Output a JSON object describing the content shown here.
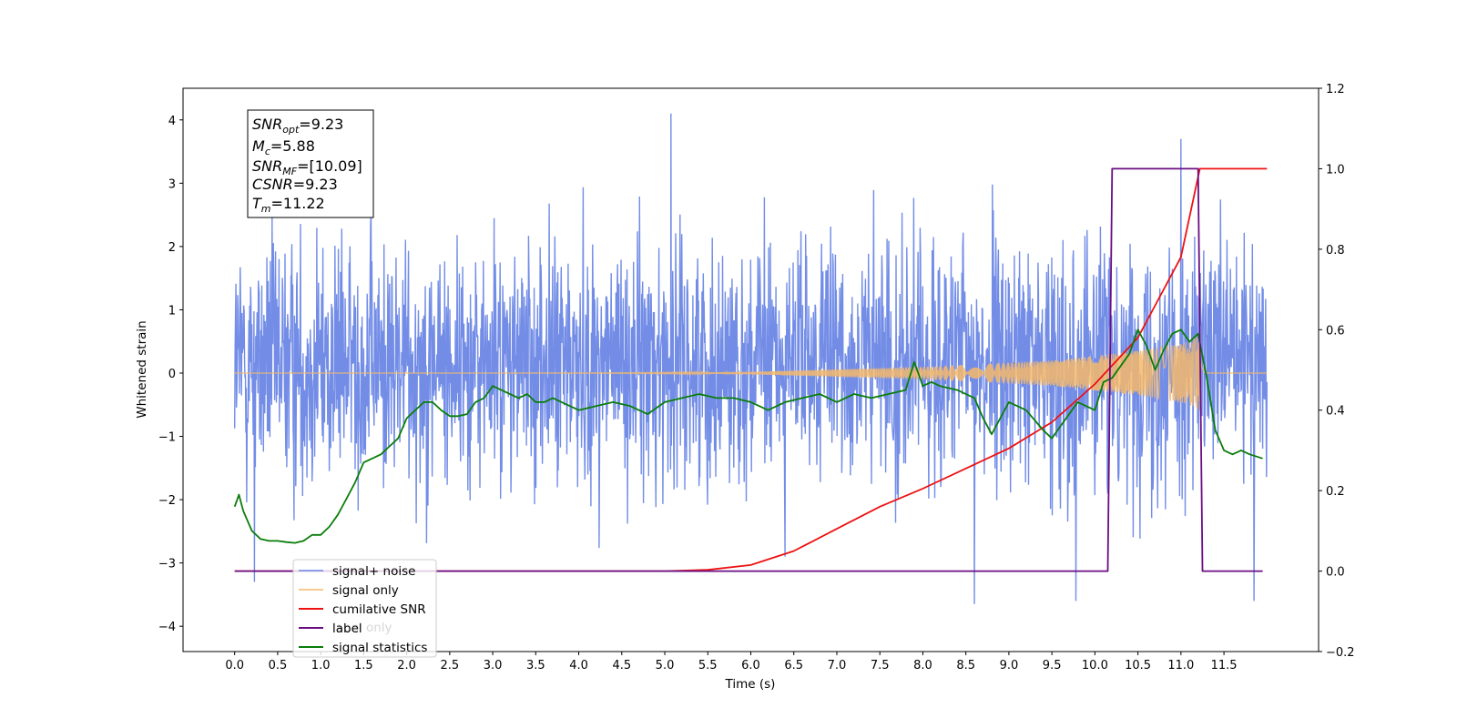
{
  "chart_data": {
    "type": "line",
    "title": "",
    "xlabel": "Time (s)",
    "ylabel": "Whitened strain",
    "xlim": [
      -0.6,
      12.6
    ],
    "ylim_left": [
      -4.4,
      4.5
    ],
    "ylim_right": [
      -0.2,
      1.2
    ],
    "x_ticks": [
      0.0,
      0.5,
      1.0,
      1.5,
      2.0,
      2.5,
      3.0,
      3.5,
      4.0,
      4.5,
      5.0,
      5.5,
      6.0,
      6.5,
      7.0,
      7.5,
      8.0,
      8.5,
      9.0,
      9.5,
      10.0,
      10.5,
      11.0,
      11.5
    ],
    "x_tick_labels": [
      "0.0",
      "0.5",
      "1.0",
      "1.5",
      "2.0",
      "2.5",
      "3.0",
      "3.5",
      "4.0",
      "4.5",
      "5.0",
      "5.5",
      "6.0",
      "6.5",
      "7.0",
      "7.5",
      "8.0",
      "8.5",
      "9.0",
      "9.5",
      "10.0",
      "10.5",
      "11.0",
      "11.5"
    ],
    "y_left_ticks": [
      -4,
      -3,
      -2,
      -1,
      0,
      1,
      2,
      3,
      4
    ],
    "y_left_tick_labels": [
      "−4",
      "−3",
      "−2",
      "−1",
      "0",
      "1",
      "2",
      "3",
      "4"
    ],
    "y_right_ticks": [
      -0.2,
      0.0,
      0.2,
      0.4,
      0.6,
      0.8,
      1.0,
      1.2
    ],
    "y_right_tick_labels": [
      "−0.2",
      "0.0",
      "0.2",
      "0.4",
      "0.6",
      "0.8",
      "1.0",
      "1.2"
    ],
    "grid": false,
    "legend_position": "bottom-left",
    "series": [
      {
        "name": "signal+ noise",
        "axis": "left",
        "color": "#6b87e6",
        "kind": "noise_band",
        "x_range": [
          0.0,
          12.0
        ],
        "typical_envelope": [
          -2.0,
          2.5
        ],
        "peak_values": [
          {
            "x": 5.07,
            "y": 4.1
          },
          {
            "x": 11.0,
            "y": 3.7
          },
          {
            "x": 8.6,
            "y": -3.65
          },
          {
            "x": 11.85,
            "y": -3.6
          },
          {
            "x": 9.78,
            "y": -3.6
          },
          {
            "x": 0.23,
            "y": -3.3
          }
        ]
      },
      {
        "name": "signal only",
        "axis": "left",
        "color": "#f5b86b",
        "kind": "chirp",
        "x_range": [
          0.0,
          12.0
        ],
        "merger_time": 11.22,
        "envelope_points": [
          {
            "x": 6.0,
            "y": 0.02
          },
          {
            "x": 8.0,
            "y": 0.1
          },
          {
            "x": 9.5,
            "y": 0.2
          },
          {
            "x": 10.5,
            "y": 0.35
          },
          {
            "x": 11.1,
            "y": 0.5
          },
          {
            "x": 11.22,
            "y": 0.6
          }
        ]
      },
      {
        "name": "cumilative SNR",
        "axis": "right",
        "color": "#ee1111",
        "x": [
          0.0,
          5.0,
          5.5,
          6.0,
          6.5,
          7.0,
          7.5,
          8.0,
          8.5,
          9.0,
          9.5,
          10.0,
          10.5,
          11.0,
          11.22,
          12.0
        ],
        "y": [
          0.0,
          0.0,
          0.003,
          0.015,
          0.05,
          0.105,
          0.16,
          0.205,
          0.255,
          0.305,
          0.37,
          0.465,
          0.58,
          0.78,
          1.0,
          1.0
        ]
      },
      {
        "name": "label",
        "axis": "right",
        "color": "#6a0d83",
        "x": [
          0.0,
          10.15,
          10.2,
          11.2,
          11.25,
          11.95
        ],
        "y": [
          0.0,
          0.0,
          1.0,
          1.0,
          0.0,
          0.0
        ]
      },
      {
        "name": "signal statistics",
        "axis": "right",
        "color": "#0a7d0a",
        "x": [
          0.0,
          0.05,
          0.1,
          0.2,
          0.3,
          0.4,
          0.5,
          0.6,
          0.7,
          0.8,
          0.9,
          1.0,
          1.1,
          1.2,
          1.3,
          1.4,
          1.5,
          1.6,
          1.7,
          1.8,
          1.9,
          2.0,
          2.1,
          2.2,
          2.3,
          2.4,
          2.5,
          2.6,
          2.7,
          2.8,
          2.9,
          3.0,
          3.1,
          3.2,
          3.3,
          3.4,
          3.5,
          3.6,
          3.7,
          3.8,
          3.9,
          4.0,
          4.2,
          4.4,
          4.6,
          4.8,
          5.0,
          5.2,
          5.4,
          5.6,
          5.8,
          6.0,
          6.2,
          6.4,
          6.6,
          6.8,
          7.0,
          7.2,
          7.4,
          7.6,
          7.8,
          7.9,
          8.0,
          8.1,
          8.2,
          8.4,
          8.6,
          8.7,
          8.8,
          9.0,
          9.2,
          9.4,
          9.5,
          9.6,
          9.8,
          10.0,
          10.1,
          10.2,
          10.4,
          10.5,
          10.6,
          10.7,
          10.8,
          10.9,
          11.0,
          11.1,
          11.2,
          11.3,
          11.4,
          11.5,
          11.6,
          11.7,
          11.8,
          11.95
        ],
        "y": [
          0.16,
          0.19,
          0.15,
          0.1,
          0.08,
          0.075,
          0.075,
          0.072,
          0.07,
          0.075,
          0.09,
          0.09,
          0.11,
          0.14,
          0.18,
          0.22,
          0.27,
          0.28,
          0.29,
          0.31,
          0.33,
          0.38,
          0.4,
          0.42,
          0.42,
          0.4,
          0.385,
          0.385,
          0.39,
          0.42,
          0.43,
          0.46,
          0.45,
          0.44,
          0.43,
          0.44,
          0.42,
          0.42,
          0.43,
          0.42,
          0.41,
          0.4,
          0.41,
          0.42,
          0.41,
          0.39,
          0.42,
          0.43,
          0.44,
          0.43,
          0.43,
          0.42,
          0.4,
          0.42,
          0.43,
          0.44,
          0.42,
          0.44,
          0.43,
          0.44,
          0.45,
          0.52,
          0.46,
          0.47,
          0.46,
          0.45,
          0.43,
          0.38,
          0.34,
          0.42,
          0.4,
          0.35,
          0.33,
          0.36,
          0.42,
          0.4,
          0.47,
          0.48,
          0.54,
          0.6,
          0.56,
          0.5,
          0.55,
          0.59,
          0.6,
          0.57,
          0.59,
          0.48,
          0.35,
          0.3,
          0.29,
          0.3,
          0.29,
          0.28
        ]
      }
    ],
    "annotation_lines": [
      {
        "name": "SNR",
        "sub": "opt",
        "value": "=9.23"
      },
      {
        "name": "M",
        "sub": "c",
        "value": "=5.88"
      },
      {
        "name": "SNR",
        "sub": "MF",
        "value": "=[10.09]"
      },
      {
        "name": "CSNR",
        "sub": "",
        "value": "=9.23"
      },
      {
        "name": "T",
        "sub": "m",
        "value": "=11.22"
      }
    ],
    "legend_overlap_text": "label only"
  }
}
